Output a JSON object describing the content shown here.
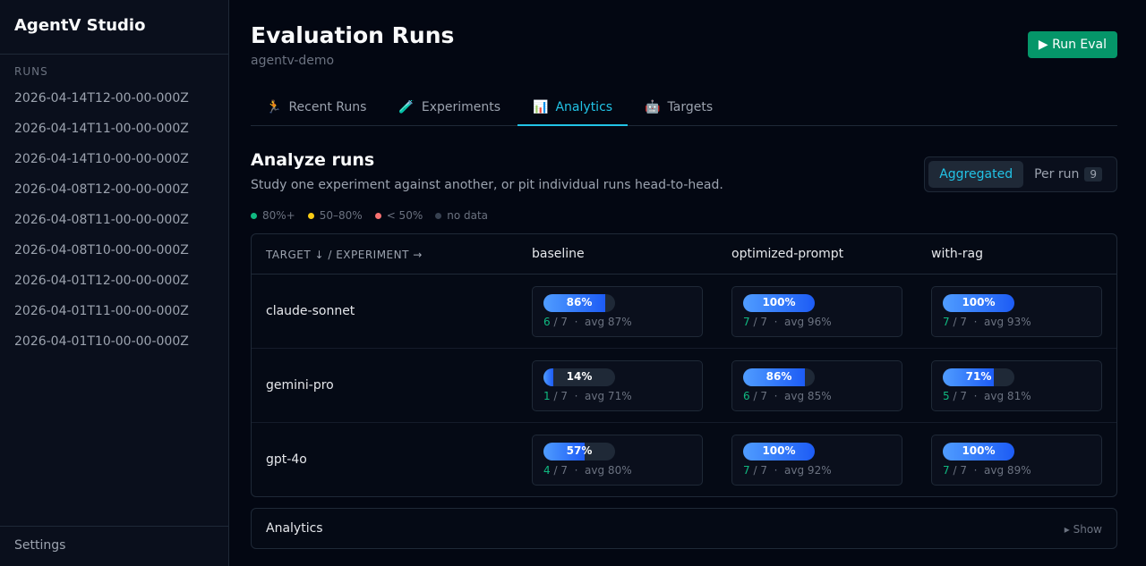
{
  "sidebar": {
    "title": "AgentV Studio",
    "section": "RUNS",
    "runs": [
      "2026-04-14T12-00-00-000Z",
      "2026-04-14T11-00-00-000Z",
      "2026-04-14T10-00-00-000Z",
      "2026-04-08T12-00-00-000Z",
      "2026-04-08T11-00-00-000Z",
      "2026-04-08T10-00-00-000Z",
      "2026-04-01T12-00-00-000Z",
      "2026-04-01T11-00-00-000Z",
      "2026-04-01T10-00-00-000Z"
    ],
    "settings": "Settings"
  },
  "header": {
    "title": "Evaluation Runs",
    "project": "agentv-demo",
    "run_button": "▶ Run Eval"
  },
  "tabs": [
    {
      "icon": "🏃",
      "label": "Recent Runs"
    },
    {
      "icon": "🧪",
      "label": "Experiments"
    },
    {
      "icon": "📊",
      "label": "Analytics",
      "active": true
    },
    {
      "icon": "🤖",
      "label": "Targets"
    }
  ],
  "analyze": {
    "title": "Analyze runs",
    "subtitle": "Study one experiment against another, or pit individual runs head-to-head.",
    "legend": [
      {
        "label": "80%+",
        "color": "#10b981"
      },
      {
        "label": "50–80%",
        "color": "#facc15"
      },
      {
        "label": "< 50%",
        "color": "#f87171"
      },
      {
        "label": "no data",
        "color": "#374151"
      }
    ],
    "toggle": {
      "aggregated": "Aggregated",
      "per_run": "Per run",
      "per_run_count": "9",
      "selected": "Aggregated"
    }
  },
  "table": {
    "corner": "TARGET ↓ / EXPERIMENT →",
    "experiments": [
      "baseline",
      "optimized-prompt",
      "with-rag"
    ],
    "rows": [
      {
        "target": "claude-sonnet",
        "cells": [
          {
            "pct": 86,
            "label": "86%",
            "passed": "6",
            "total": "/ 7",
            "avg": "avg 87%"
          },
          {
            "pct": 100,
            "label": "100%",
            "passed": "7",
            "total": "/ 7",
            "avg": "avg 96%"
          },
          {
            "pct": 100,
            "label": "100%",
            "passed": "7",
            "total": "/ 7",
            "avg": "avg 93%"
          }
        ]
      },
      {
        "target": "gemini-pro",
        "cells": [
          {
            "pct": 14,
            "label": "14%",
            "passed": "1",
            "total": "/ 7",
            "avg": "avg 71%"
          },
          {
            "pct": 86,
            "label": "86%",
            "passed": "6",
            "total": "/ 7",
            "avg": "avg 85%"
          },
          {
            "pct": 71,
            "label": "71%",
            "passed": "5",
            "total": "/ 7",
            "avg": "avg 81%"
          }
        ]
      },
      {
        "target": "gpt-4o",
        "cells": [
          {
            "pct": 57,
            "label": "57%",
            "passed": "4",
            "total": "/ 7",
            "avg": "avg 80%"
          },
          {
            "pct": 100,
            "label": "100%",
            "passed": "7",
            "total": "/ 7",
            "avg": "avg 92%"
          },
          {
            "pct": 100,
            "label": "100%",
            "passed": "7",
            "total": "/ 7",
            "avg": "avg 89%"
          }
        ]
      }
    ]
  },
  "analytics_panel": {
    "title": "Analytics",
    "toggle": "▸ Show"
  }
}
